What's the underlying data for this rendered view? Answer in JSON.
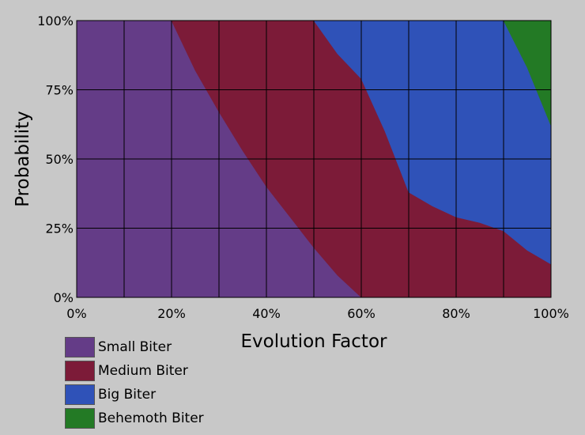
{
  "chart_data": {
    "type": "area",
    "stacked": true,
    "xlabel": "Evolution Factor",
    "ylabel": "Probability",
    "x": [
      0,
      10,
      20,
      25,
      30,
      35,
      40,
      45,
      50,
      55,
      60,
      65,
      70,
      75,
      80,
      85,
      90,
      95,
      100
    ],
    "x_ticks": [
      "0%",
      "20%",
      "40%",
      "60%",
      "80%",
      "100%"
    ],
    "y_ticks": [
      "0%",
      "25%",
      "50%",
      "75%",
      "100%"
    ],
    "xlim": [
      0,
      100
    ],
    "ylim": [
      0,
      100
    ],
    "grid": true,
    "legend_position": "bottom-left",
    "series": [
      {
        "name": "Small Biter",
        "color": "#643c87",
        "values": [
          100,
          100,
          100,
          82,
          67,
          53,
          40,
          29,
          18,
          8,
          0,
          0,
          0,
          0,
          0,
          0,
          0,
          0,
          0
        ]
      },
      {
        "name": "Medium Biter",
        "color": "#7c1b38",
        "values": [
          0,
          0,
          0,
          18,
          33,
          47,
          60,
          71,
          82,
          80,
          79,
          60,
          38,
          33,
          29,
          27,
          24,
          17,
          12
        ]
      },
      {
        "name": "Big Biter",
        "color": "#2f52b8",
        "values": [
          0,
          0,
          0,
          0,
          0,
          0,
          0,
          0,
          0,
          12,
          21,
          40,
          62,
          67,
          71,
          73,
          76,
          66,
          50
        ]
      },
      {
        "name": "Behemoth Biter",
        "color": "#237a25",
        "values": [
          0,
          0,
          0,
          0,
          0,
          0,
          0,
          0,
          0,
          0,
          0,
          0,
          0,
          0,
          0,
          0,
          0,
          17,
          38
        ]
      }
    ]
  }
}
